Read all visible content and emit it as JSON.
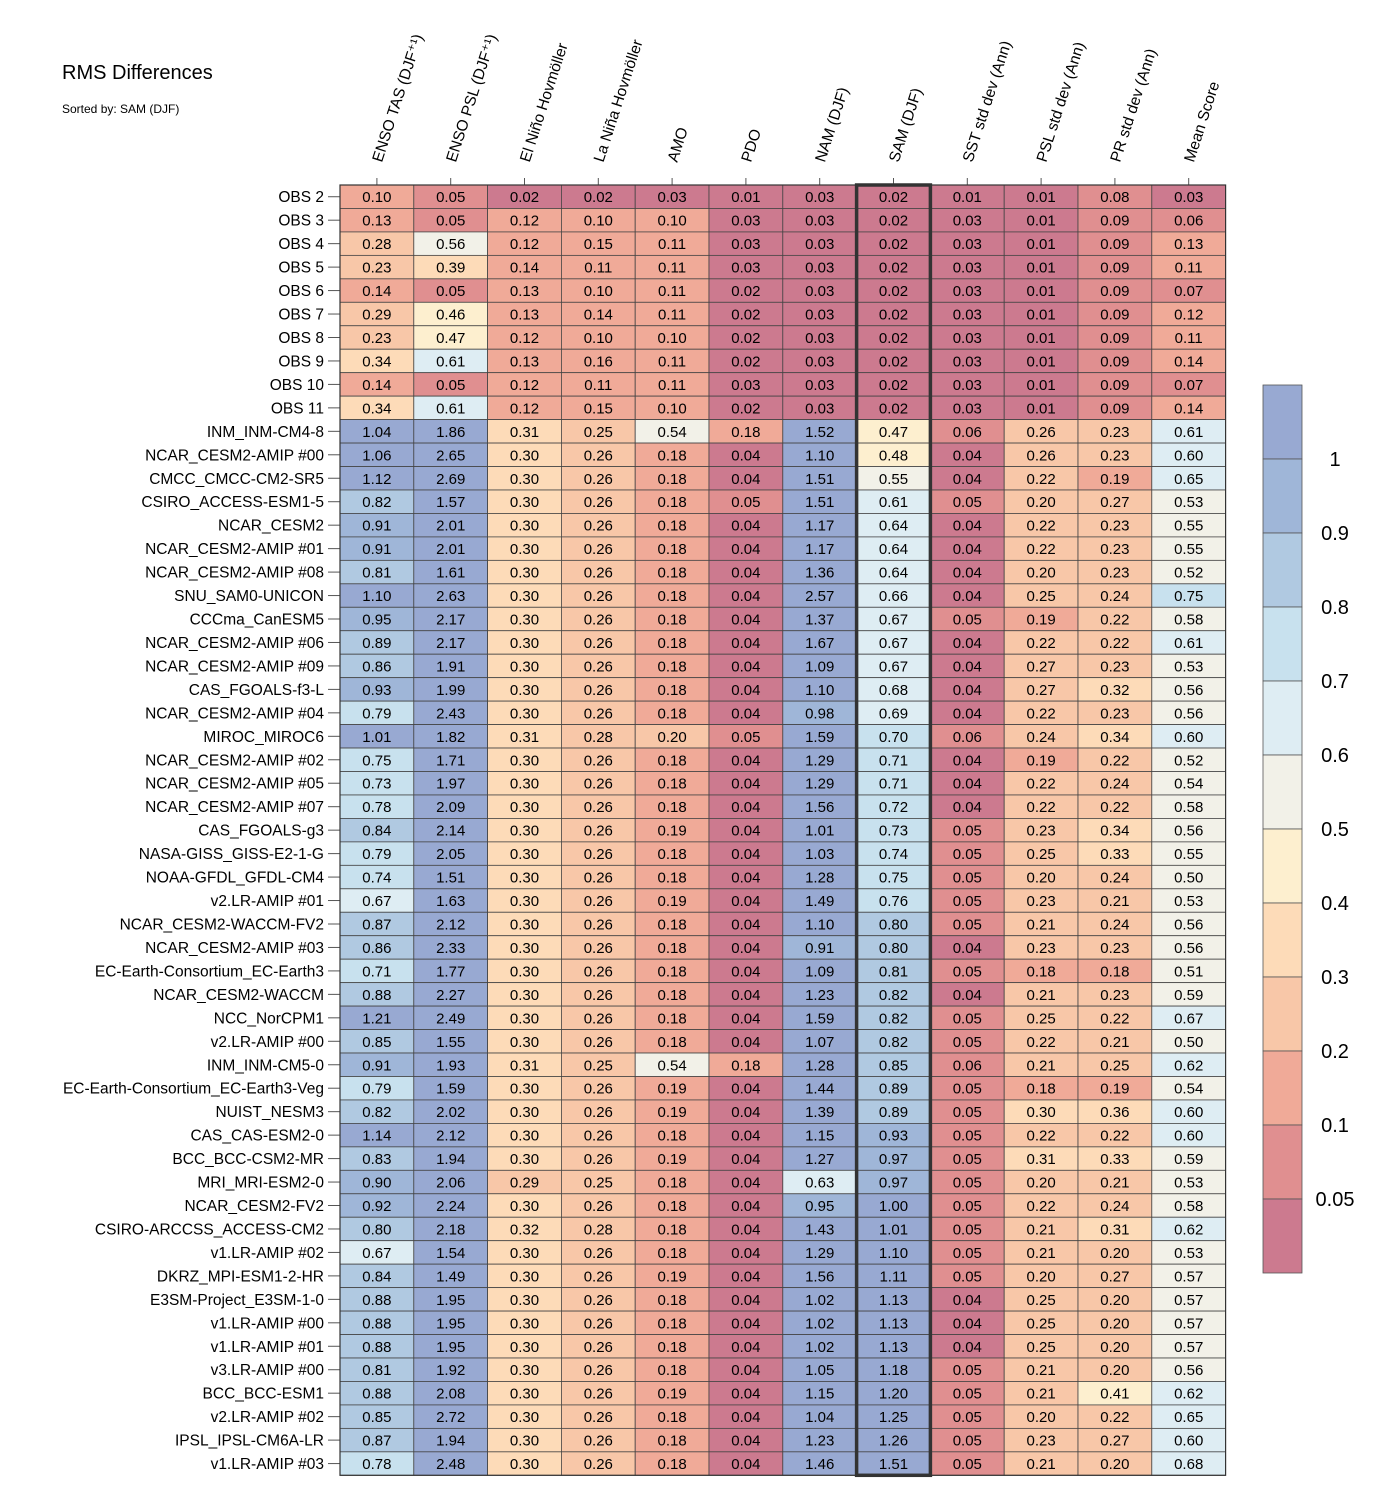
{
  "title": "RMS Differences",
  "subtitle": "Sorted by: SAM (DJF)",
  "colors": {
    "bins": [
      "#cc7a8f",
      "#e08f90",
      "#f0aa98",
      "#f8c7a8",
      "#fddbb8",
      "#fdefcf",
      "#f2f1e8",
      "#deedf3",
      "#c8e1ee",
      "#b0c9e1",
      "#9fb6d8",
      "#98a9d2"
    ],
    "highlight_border": "#333333"
  },
  "chart_data": {
    "type": "heatmap",
    "sorted_by": "SAM (DJF)",
    "highlight_column": "SAM (DJF)",
    "columns": [
      "ENSO TAS (DJF⁺¹)",
      "ENSO PSL (DJF⁺¹)",
      "El Niño Hovmöller",
      "La Niña Hovmöller",
      "AMO",
      "PDO",
      "NAM (DJF)",
      "SAM (DJF)",
      "SST std dev (Ann)",
      "PSL std dev (Ann)",
      "PR std dev (Ann)",
      "Mean Score"
    ],
    "colorbar": {
      "boundaries": [
        0.05,
        0.1,
        0.2,
        0.3,
        0.4,
        0.5,
        0.6,
        0.7,
        0.8,
        0.9,
        1
      ],
      "tick_labels": [
        "1",
        "0.9",
        "0.8",
        "0.7",
        "0.6",
        "0.5",
        "0.4",
        "0.3",
        "0.2",
        "0.1",
        "0.05"
      ]
    },
    "rows": [
      {
        "name": "OBS 2",
        "values": [
          "0.10",
          "0.05",
          "0.02",
          "0.02",
          "0.03",
          "0.01",
          "0.03",
          "0.02",
          "0.01",
          "0.01",
          "0.08",
          "0.03"
        ]
      },
      {
        "name": "OBS 3",
        "values": [
          "0.13",
          "0.05",
          "0.12",
          "0.10",
          "0.10",
          "0.03",
          "0.03",
          "0.02",
          "0.03",
          "0.01",
          "0.09",
          "0.06"
        ]
      },
      {
        "name": "OBS 4",
        "values": [
          "0.28",
          "0.56",
          "0.12",
          "0.15",
          "0.11",
          "0.03",
          "0.03",
          "0.02",
          "0.03",
          "0.01",
          "0.09",
          "0.13"
        ]
      },
      {
        "name": "OBS 5",
        "values": [
          "0.23",
          "0.39",
          "0.14",
          "0.11",
          "0.11",
          "0.03",
          "0.03",
          "0.02",
          "0.03",
          "0.01",
          "0.09",
          "0.11"
        ]
      },
      {
        "name": "OBS 6",
        "values": [
          "0.14",
          "0.05",
          "0.13",
          "0.10",
          "0.11",
          "0.02",
          "0.03",
          "0.02",
          "0.03",
          "0.01",
          "0.09",
          "0.07"
        ]
      },
      {
        "name": "OBS 7",
        "values": [
          "0.29",
          "0.46",
          "0.13",
          "0.14",
          "0.11",
          "0.02",
          "0.03",
          "0.02",
          "0.03",
          "0.01",
          "0.09",
          "0.12"
        ]
      },
      {
        "name": "OBS 8",
        "values": [
          "0.23",
          "0.47",
          "0.12",
          "0.10",
          "0.10",
          "0.02",
          "0.03",
          "0.02",
          "0.03",
          "0.01",
          "0.09",
          "0.11"
        ]
      },
      {
        "name": "OBS 9",
        "values": [
          "0.34",
          "0.61",
          "0.13",
          "0.16",
          "0.11",
          "0.02",
          "0.03",
          "0.02",
          "0.03",
          "0.01",
          "0.09",
          "0.14"
        ]
      },
      {
        "name": "OBS 10",
        "values": [
          "0.14",
          "0.05",
          "0.12",
          "0.11",
          "0.11",
          "0.03",
          "0.03",
          "0.02",
          "0.03",
          "0.01",
          "0.09",
          "0.07"
        ]
      },
      {
        "name": "OBS 11",
        "values": [
          "0.34",
          "0.61",
          "0.12",
          "0.15",
          "0.10",
          "0.02",
          "0.03",
          "0.02",
          "0.03",
          "0.01",
          "0.09",
          "0.14"
        ]
      },
      {
        "name": "INM_INM-CM4-8",
        "values": [
          "1.04",
          "1.86",
          "0.31",
          "0.25",
          "0.54",
          "0.18",
          "1.52",
          "0.47",
          "0.06",
          "0.26",
          "0.23",
          "0.61"
        ]
      },
      {
        "name": "NCAR_CESM2-AMIP  #00",
        "values": [
          "1.06",
          "2.65",
          "0.30",
          "0.26",
          "0.18",
          "0.04",
          "1.10",
          "0.48",
          "0.04",
          "0.26",
          "0.23",
          "0.60"
        ]
      },
      {
        "name": "CMCC_CMCC-CM2-SR5",
        "values": [
          "1.12",
          "2.69",
          "0.30",
          "0.26",
          "0.18",
          "0.04",
          "1.51",
          "0.55",
          "0.04",
          "0.22",
          "0.19",
          "0.65"
        ]
      },
      {
        "name": "CSIRO_ACCESS-ESM1-5",
        "values": [
          "0.82",
          "1.57",
          "0.30",
          "0.26",
          "0.18",
          "0.05",
          "1.51",
          "0.61",
          "0.05",
          "0.20",
          "0.27",
          "0.53"
        ]
      },
      {
        "name": "NCAR_CESM2",
        "values": [
          "0.91",
          "2.01",
          "0.30",
          "0.26",
          "0.18",
          "0.04",
          "1.17",
          "0.64",
          "0.04",
          "0.22",
          "0.23",
          "0.55"
        ]
      },
      {
        "name": "NCAR_CESM2-AMIP  #01",
        "values": [
          "0.91",
          "2.01",
          "0.30",
          "0.26",
          "0.18",
          "0.04",
          "1.17",
          "0.64",
          "0.04",
          "0.22",
          "0.23",
          "0.55"
        ]
      },
      {
        "name": "NCAR_CESM2-AMIP  #08",
        "values": [
          "0.81",
          "1.61",
          "0.30",
          "0.26",
          "0.18",
          "0.04",
          "1.36",
          "0.64",
          "0.04",
          "0.20",
          "0.23",
          "0.52"
        ]
      },
      {
        "name": "SNU_SAM0-UNICON",
        "values": [
          "1.10",
          "2.63",
          "0.30",
          "0.26",
          "0.18",
          "0.04",
          "2.57",
          "0.66",
          "0.04",
          "0.25",
          "0.24",
          "0.75"
        ]
      },
      {
        "name": "CCCma_CanESM5",
        "values": [
          "0.95",
          "2.17",
          "0.30",
          "0.26",
          "0.18",
          "0.04",
          "1.37",
          "0.67",
          "0.05",
          "0.19",
          "0.22",
          "0.58"
        ]
      },
      {
        "name": "NCAR_CESM2-AMIP  #06",
        "values": [
          "0.89",
          "2.17",
          "0.30",
          "0.26",
          "0.18",
          "0.04",
          "1.67",
          "0.67",
          "0.04",
          "0.22",
          "0.22",
          "0.61"
        ]
      },
      {
        "name": "NCAR_CESM2-AMIP  #09",
        "values": [
          "0.86",
          "1.91",
          "0.30",
          "0.26",
          "0.18",
          "0.04",
          "1.09",
          "0.67",
          "0.04",
          "0.27",
          "0.23",
          "0.53"
        ]
      },
      {
        "name": "CAS_FGOALS-f3-L",
        "values": [
          "0.93",
          "1.99",
          "0.30",
          "0.26",
          "0.18",
          "0.04",
          "1.10",
          "0.68",
          "0.04",
          "0.27",
          "0.32",
          "0.56"
        ]
      },
      {
        "name": "NCAR_CESM2-AMIP  #04",
        "values": [
          "0.79",
          "2.43",
          "0.30",
          "0.26",
          "0.18",
          "0.04",
          "0.98",
          "0.69",
          "0.04",
          "0.22",
          "0.23",
          "0.56"
        ]
      },
      {
        "name": "MIROC_MIROC6",
        "values": [
          "1.01",
          "1.82",
          "0.31",
          "0.28",
          "0.20",
          "0.05",
          "1.59",
          "0.70",
          "0.06",
          "0.24",
          "0.34",
          "0.60"
        ]
      },
      {
        "name": "NCAR_CESM2-AMIP  #02",
        "values": [
          "0.75",
          "1.71",
          "0.30",
          "0.26",
          "0.18",
          "0.04",
          "1.29",
          "0.71",
          "0.04",
          "0.19",
          "0.22",
          "0.52"
        ]
      },
      {
        "name": "NCAR_CESM2-AMIP  #05",
        "values": [
          "0.73",
          "1.97",
          "0.30",
          "0.26",
          "0.18",
          "0.04",
          "1.29",
          "0.71",
          "0.04",
          "0.22",
          "0.24",
          "0.54"
        ]
      },
      {
        "name": "NCAR_CESM2-AMIP  #07",
        "values": [
          "0.78",
          "2.09",
          "0.30",
          "0.26",
          "0.18",
          "0.04",
          "1.56",
          "0.72",
          "0.04",
          "0.22",
          "0.22",
          "0.58"
        ]
      },
      {
        "name": "CAS_FGOALS-g3",
        "values": [
          "0.84",
          "2.14",
          "0.30",
          "0.26",
          "0.19",
          "0.04",
          "1.01",
          "0.73",
          "0.05",
          "0.23",
          "0.34",
          "0.56"
        ]
      },
      {
        "name": "NASA-GISS_GISS-E2-1-G",
        "values": [
          "0.79",
          "2.05",
          "0.30",
          "0.26",
          "0.18",
          "0.04",
          "1.03",
          "0.74",
          "0.05",
          "0.25",
          "0.33",
          "0.55"
        ]
      },
      {
        "name": "NOAA-GFDL_GFDL-CM4",
        "values": [
          "0.74",
          "1.51",
          "0.30",
          "0.26",
          "0.18",
          "0.04",
          "1.28",
          "0.75",
          "0.05",
          "0.20",
          "0.24",
          "0.50"
        ]
      },
      {
        "name": "v2.LR-AMIP  #01",
        "values": [
          "0.67",
          "1.63",
          "0.30",
          "0.26",
          "0.19",
          "0.04",
          "1.49",
          "0.76",
          "0.05",
          "0.23",
          "0.21",
          "0.53"
        ]
      },
      {
        "name": "NCAR_CESM2-WACCM-FV2",
        "values": [
          "0.87",
          "2.12",
          "0.30",
          "0.26",
          "0.18",
          "0.04",
          "1.10",
          "0.80",
          "0.05",
          "0.21",
          "0.24",
          "0.56"
        ]
      },
      {
        "name": "NCAR_CESM2-AMIP  #03",
        "values": [
          "0.86",
          "2.33",
          "0.30",
          "0.26",
          "0.18",
          "0.04",
          "0.91",
          "0.80",
          "0.04",
          "0.23",
          "0.23",
          "0.56"
        ]
      },
      {
        "name": "EC-Earth-Consortium_EC-Earth3",
        "values": [
          "0.71",
          "1.77",
          "0.30",
          "0.26",
          "0.18",
          "0.04",
          "1.09",
          "0.81",
          "0.05",
          "0.18",
          "0.18",
          "0.51"
        ]
      },
      {
        "name": "NCAR_CESM2-WACCM",
        "values": [
          "0.88",
          "2.27",
          "0.30",
          "0.26",
          "0.18",
          "0.04",
          "1.23",
          "0.82",
          "0.04",
          "0.21",
          "0.23",
          "0.59"
        ]
      },
      {
        "name": "NCC_NorCPM1",
        "values": [
          "1.21",
          "2.49",
          "0.30",
          "0.26",
          "0.18",
          "0.04",
          "1.59",
          "0.82",
          "0.05",
          "0.25",
          "0.22",
          "0.67"
        ]
      },
      {
        "name": "v2.LR-AMIP  #00",
        "values": [
          "0.85",
          "1.55",
          "0.30",
          "0.26",
          "0.18",
          "0.04",
          "1.07",
          "0.82",
          "0.05",
          "0.22",
          "0.21",
          "0.50"
        ]
      },
      {
        "name": "INM_INM-CM5-0",
        "values": [
          "0.91",
          "1.93",
          "0.31",
          "0.25",
          "0.54",
          "0.18",
          "1.28",
          "0.85",
          "0.06",
          "0.21",
          "0.25",
          "0.62"
        ]
      },
      {
        "name": "EC-Earth-Consortium_EC-Earth3-Veg",
        "values": [
          "0.79",
          "1.59",
          "0.30",
          "0.26",
          "0.19",
          "0.04",
          "1.44",
          "0.89",
          "0.05",
          "0.18",
          "0.19",
          "0.54"
        ]
      },
      {
        "name": "NUIST_NESM3",
        "values": [
          "0.82",
          "2.02",
          "0.30",
          "0.26",
          "0.19",
          "0.04",
          "1.39",
          "0.89",
          "0.05",
          "0.30",
          "0.36",
          "0.60"
        ]
      },
      {
        "name": "CAS_CAS-ESM2-0",
        "values": [
          "1.14",
          "2.12",
          "0.30",
          "0.26",
          "0.18",
          "0.04",
          "1.15",
          "0.93",
          "0.05",
          "0.22",
          "0.22",
          "0.60"
        ]
      },
      {
        "name": "BCC_BCC-CSM2-MR",
        "values": [
          "0.83",
          "1.94",
          "0.30",
          "0.26",
          "0.19",
          "0.04",
          "1.27",
          "0.97",
          "0.05",
          "0.31",
          "0.33",
          "0.59"
        ]
      },
      {
        "name": "MRI_MRI-ESM2-0",
        "values": [
          "0.90",
          "2.06",
          "0.29",
          "0.25",
          "0.18",
          "0.04",
          "0.63",
          "0.97",
          "0.05",
          "0.20",
          "0.21",
          "0.53"
        ]
      },
      {
        "name": "NCAR_CESM2-FV2",
        "values": [
          "0.92",
          "2.24",
          "0.30",
          "0.26",
          "0.18",
          "0.04",
          "0.95",
          "1.00",
          "0.05",
          "0.22",
          "0.24",
          "0.58"
        ]
      },
      {
        "name": "CSIRO-ARCCSS_ACCESS-CM2",
        "values": [
          "0.80",
          "2.18",
          "0.32",
          "0.28",
          "0.18",
          "0.04",
          "1.43",
          "1.01",
          "0.05",
          "0.21",
          "0.31",
          "0.62"
        ]
      },
      {
        "name": "v1.LR-AMIP  #02",
        "values": [
          "0.67",
          "1.54",
          "0.30",
          "0.26",
          "0.18",
          "0.04",
          "1.29",
          "1.10",
          "0.05",
          "0.21",
          "0.20",
          "0.53"
        ]
      },
      {
        "name": "DKRZ_MPI-ESM1-2-HR",
        "values": [
          "0.84",
          "1.49",
          "0.30",
          "0.26",
          "0.19",
          "0.04",
          "1.56",
          "1.11",
          "0.05",
          "0.20",
          "0.27",
          "0.57"
        ]
      },
      {
        "name": "E3SM-Project_E3SM-1-0",
        "values": [
          "0.88",
          "1.95",
          "0.30",
          "0.26",
          "0.18",
          "0.04",
          "1.02",
          "1.13",
          "0.04",
          "0.25",
          "0.20",
          "0.57"
        ]
      },
      {
        "name": "v1.LR-AMIP  #00",
        "values": [
          "0.88",
          "1.95",
          "0.30",
          "0.26",
          "0.18",
          "0.04",
          "1.02",
          "1.13",
          "0.04",
          "0.25",
          "0.20",
          "0.57"
        ]
      },
      {
        "name": "v1.LR-AMIP  #01",
        "values": [
          "0.88",
          "1.95",
          "0.30",
          "0.26",
          "0.18",
          "0.04",
          "1.02",
          "1.13",
          "0.04",
          "0.25",
          "0.20",
          "0.57"
        ]
      },
      {
        "name": "v3.LR-AMIP  #00",
        "values": [
          "0.81",
          "1.92",
          "0.30",
          "0.26",
          "0.18",
          "0.04",
          "1.05",
          "1.18",
          "0.05",
          "0.21",
          "0.20",
          "0.56"
        ]
      },
      {
        "name": "BCC_BCC-ESM1",
        "values": [
          "0.88",
          "2.08",
          "0.30",
          "0.26",
          "0.19",
          "0.04",
          "1.15",
          "1.20",
          "0.05",
          "0.21",
          "0.41",
          "0.62"
        ]
      },
      {
        "name": "v2.LR-AMIP  #02",
        "values": [
          "0.85",
          "2.72",
          "0.30",
          "0.26",
          "0.18",
          "0.04",
          "1.04",
          "1.25",
          "0.05",
          "0.20",
          "0.22",
          "0.65"
        ]
      },
      {
        "name": "IPSL_IPSL-CM6A-LR",
        "values": [
          "0.87",
          "1.94",
          "0.30",
          "0.26",
          "0.18",
          "0.04",
          "1.23",
          "1.26",
          "0.05",
          "0.23",
          "0.27",
          "0.60"
        ]
      },
      {
        "name": "v1.LR-AMIP  #03",
        "values": [
          "0.78",
          "2.48",
          "0.30",
          "0.26",
          "0.18",
          "0.04",
          "1.46",
          "1.51",
          "0.05",
          "0.21",
          "0.20",
          "0.68"
        ]
      }
    ]
  }
}
